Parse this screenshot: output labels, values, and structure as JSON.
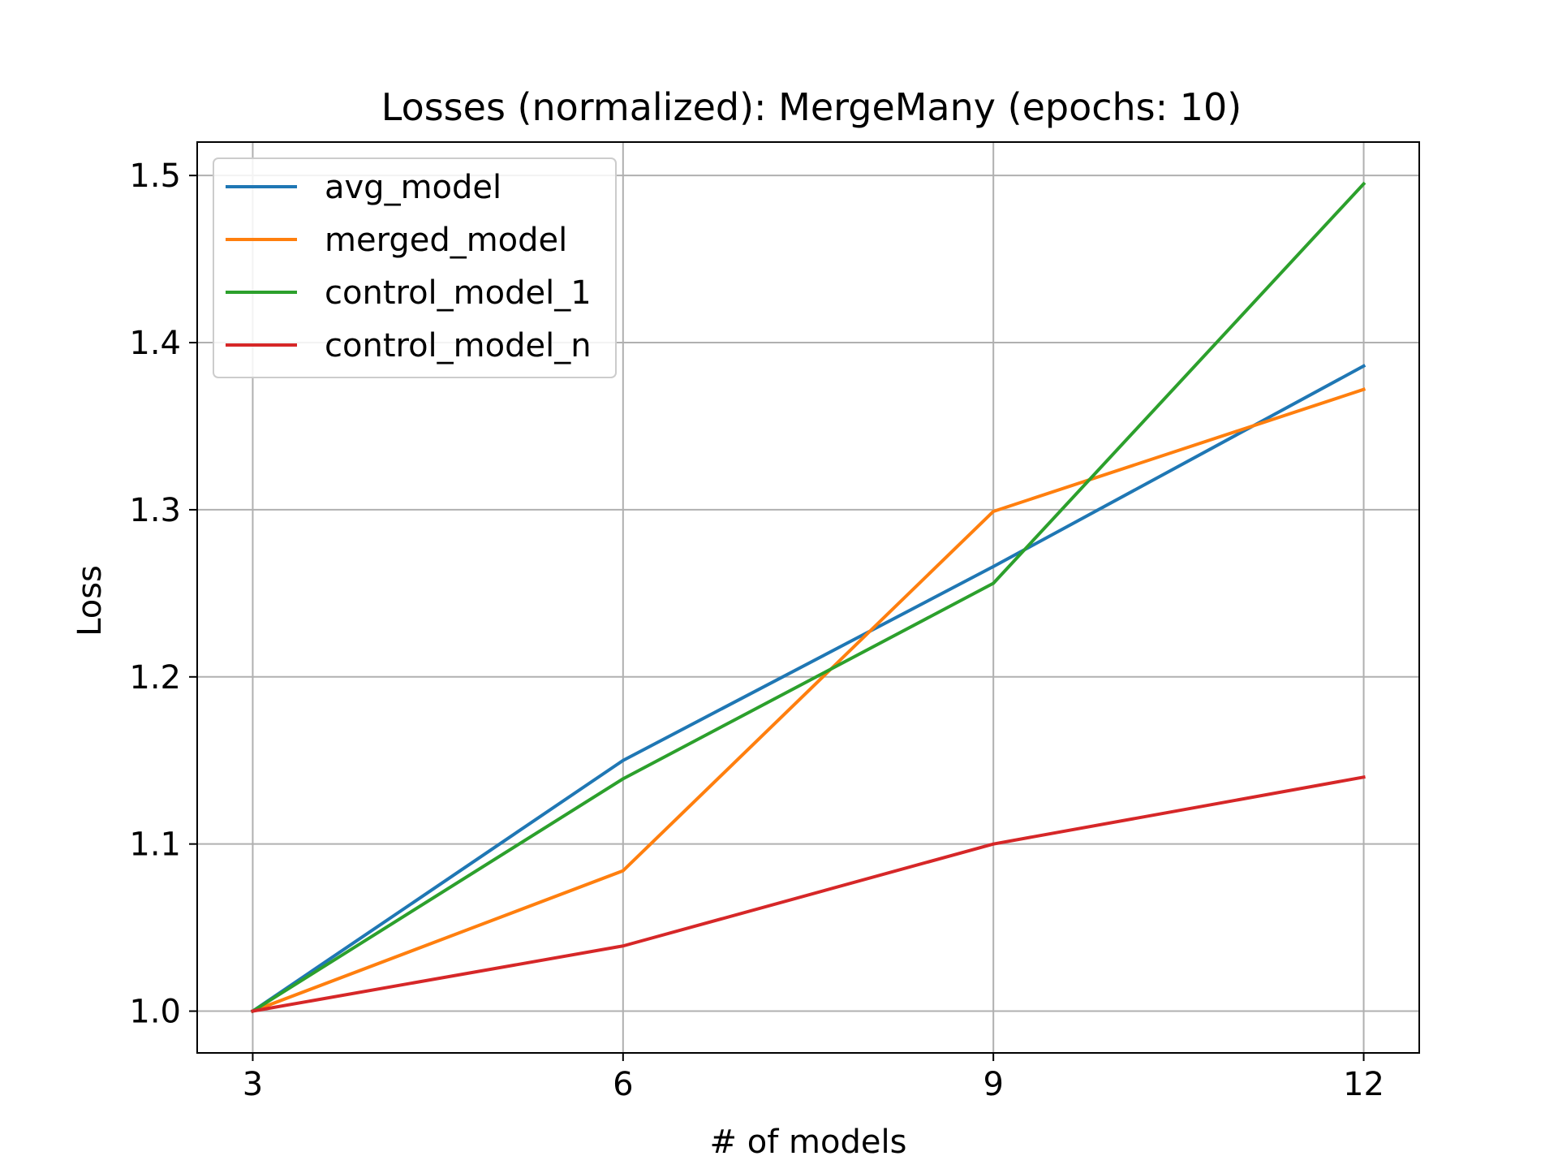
{
  "chart_data": {
    "type": "line",
    "title": "Losses (normalized): MergeMany (epochs: 10)",
    "xlabel": "# of models",
    "ylabel": "Loss",
    "x": [
      3,
      6,
      9,
      12
    ],
    "x_ticks": [
      "3",
      "6",
      "9",
      "12"
    ],
    "y_ticks": [
      "1.0",
      "1.1",
      "1.2",
      "1.3",
      "1.4",
      "1.5"
    ],
    "xlim": [
      2.55,
      12.45
    ],
    "ylim": [
      0.975,
      1.52
    ],
    "grid": true,
    "legend_position": "upper-left",
    "series": [
      {
        "name": "avg_model",
        "color": "#1f77b4",
        "values": [
          1.0,
          1.15,
          1.266,
          1.386
        ]
      },
      {
        "name": "merged_model",
        "color": "#ff7f0e",
        "values": [
          1.0,
          1.084,
          1.299,
          1.372
        ]
      },
      {
        "name": "control_model_1",
        "color": "#2ca02c",
        "values": [
          1.0,
          1.139,
          1.256,
          1.495
        ]
      },
      {
        "name": "control_model_n",
        "color": "#d62728",
        "values": [
          1.0,
          1.039,
          1.1,
          1.14
        ]
      }
    ]
  }
}
